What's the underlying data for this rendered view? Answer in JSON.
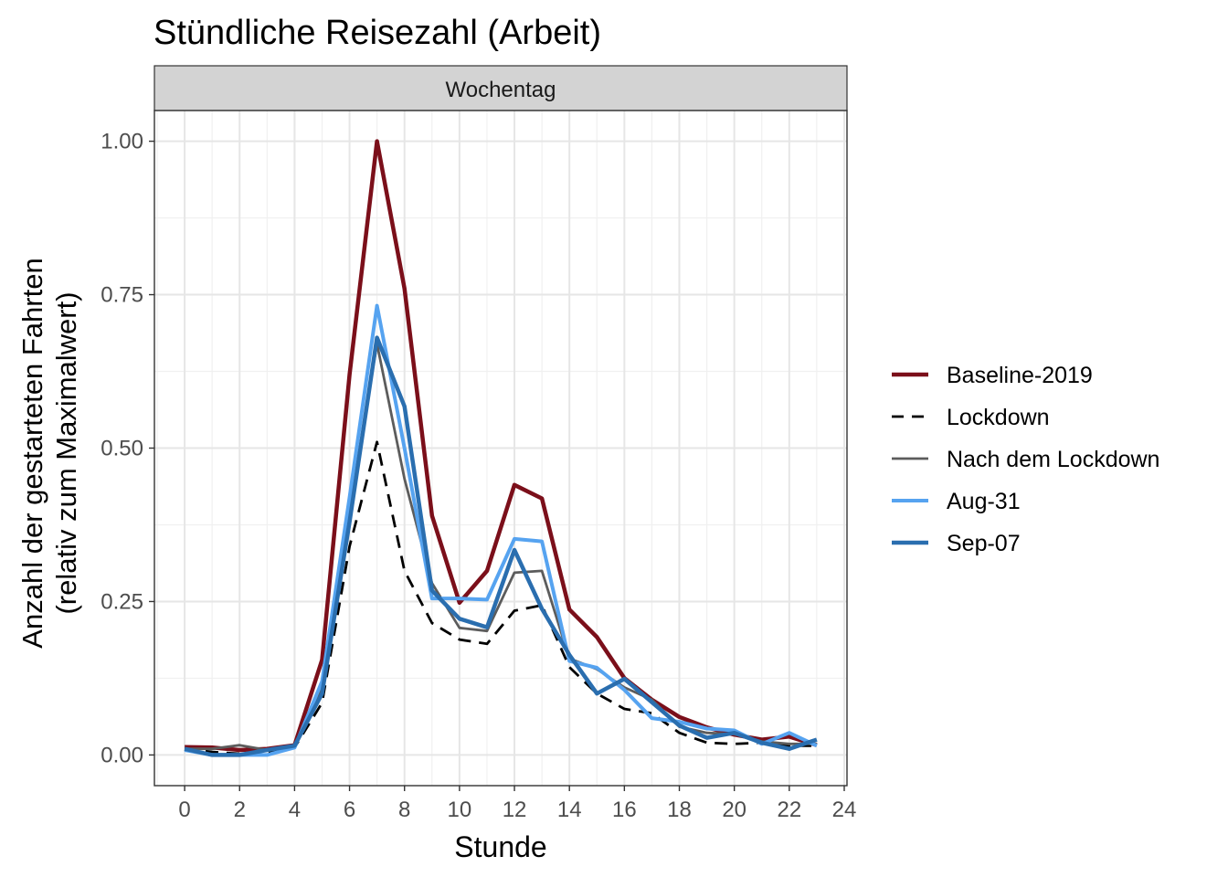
{
  "chart_data": {
    "type": "line",
    "title": "Stündliche Reisezahl (Arbeit)",
    "facet_label": "Wochentag",
    "xlabel": "Stunde",
    "ylabel_line1": "Anzahl der gestarteten Fahrten",
    "ylabel_line2": "(relativ zum Maximalwert)",
    "xlim": [
      -1.1,
      24.1
    ],
    "ylim": [
      -0.05,
      1.05
    ],
    "x_ticks": [
      0,
      2,
      4,
      6,
      8,
      10,
      12,
      14,
      16,
      18,
      20,
      22,
      24
    ],
    "x_tick_labels": [
      "0",
      "2",
      "4",
      "6",
      "8",
      "10",
      "12",
      "14",
      "16",
      "18",
      "20",
      "22",
      "24"
    ],
    "y_ticks": [
      0,
      0.25,
      0.5,
      0.75,
      1.0
    ],
    "y_tick_labels": [
      "0.00",
      "0.25",
      "0.50",
      "0.75",
      "1.00"
    ],
    "grid": true,
    "legend_position": "right",
    "x": [
      0,
      1,
      2,
      3,
      4,
      5,
      6,
      7,
      8,
      9,
      10,
      11,
      12,
      13,
      14,
      15,
      16,
      17,
      18,
      19,
      20,
      21,
      22,
      23
    ],
    "series": [
      {
        "name": "Baseline-2019",
        "color": "#7b0f1a",
        "dash": "solid",
        "width": 4.5,
        "values": [
          0.013,
          0.012,
          0.008,
          0.01,
          0.016,
          0.155,
          0.62,
          1.0,
          0.76,
          0.39,
          0.248,
          0.3,
          0.44,
          0.418,
          0.237,
          0.192,
          0.125,
          0.09,
          0.062,
          0.045,
          0.033,
          0.025,
          0.03,
          0.016
        ]
      },
      {
        "name": "Lockdown",
        "color": "#000000",
        "dash": "dashed",
        "width": 2.8,
        "values": [
          0.01,
          0.005,
          0.002,
          0.005,
          0.012,
          0.085,
          0.34,
          0.51,
          0.3,
          0.215,
          0.188,
          0.181,
          0.235,
          0.244,
          0.143,
          0.1,
          0.075,
          0.068,
          0.036,
          0.02,
          0.018,
          0.02,
          0.015,
          0.015
        ]
      },
      {
        "name": "Nach dem Lockdown",
        "color": "#5c5c5c",
        "dash": "solid",
        "width": 2.8,
        "values": [
          0.01,
          0.01,
          0.016,
          0.008,
          0.014,
          0.11,
          0.4,
          0.67,
          0.45,
          0.28,
          0.207,
          0.202,
          0.297,
          0.3,
          0.157,
          0.14,
          0.11,
          0.09,
          0.046,
          0.036,
          0.034,
          0.022,
          0.018,
          0.018
        ]
      },
      {
        "name": "Aug-31",
        "color": "#56a3f0",
        "dash": "solid",
        "width": 4,
        "values": [
          0.008,
          0.0,
          0.0,
          0.0,
          0.012,
          0.12,
          0.42,
          0.732,
          0.5,
          0.255,
          0.255,
          0.253,
          0.352,
          0.348,
          0.153,
          0.142,
          0.106,
          0.06,
          0.054,
          0.043,
          0.04,
          0.018,
          0.036,
          0.015
        ]
      },
      {
        "name": "Sep-07",
        "color": "#2a6eaf",
        "dash": "solid",
        "width": 4.5,
        "values": [
          0.01,
          0.0,
          0.0,
          0.008,
          0.015,
          0.1,
          0.38,
          0.68,
          0.568,
          0.268,
          0.222,
          0.208,
          0.334,
          0.238,
          0.163,
          0.1,
          0.124,
          0.086,
          0.048,
          0.028,
          0.036,
          0.02,
          0.01,
          0.025
        ]
      }
    ]
  }
}
